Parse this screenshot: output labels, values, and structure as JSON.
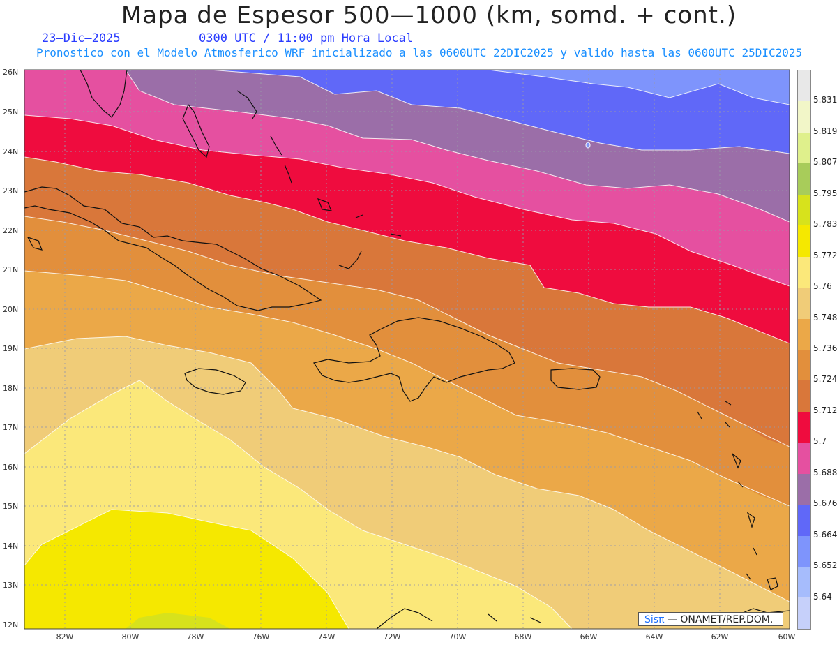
{
  "title": "Mapa de Espesor 500—1000 (km, somd. + cont.)",
  "date_label": "23—Dic—2025",
  "time_label": "0300 UTC / 11:00 pm Hora Local",
  "model_line": "Pronostico con el Modelo Atmosferico WRF inicializado a las 0600UTC_22DIC2025 y valido hasta las  0600UTC_25DIC2025",
  "credit": {
    "brand": "Sisπ",
    "text": "— ONAMET/REP.DOM."
  },
  "lat_labels": [
    "26N",
    "25N",
    "24N",
    "23N",
    "22N",
    "21N",
    "20N",
    "19N",
    "18N",
    "17N",
    "16N",
    "15N",
    "14N",
    "13N",
    "12N"
  ],
  "lon_labels": [
    "82W",
    "80W",
    "78W",
    "76W",
    "74W",
    "72W",
    "70W",
    "68W",
    "66W",
    "64W",
    "62W",
    "60W"
  ],
  "colorbar": {
    "labels": [
      "5.831",
      "5.819",
      "5.807",
      "5.795",
      "5.783",
      "5.772",
      "5.76",
      "5.748",
      "5.736",
      "5.724",
      "5.712",
      "5.7",
      "5.688",
      "5.676",
      "5.664",
      "5.652",
      "5.64"
    ],
    "colors": [
      "#e8e8e8",
      "#f2f6c8",
      "#dff08c",
      "#a8cc5a",
      "#d7e21c",
      "#f5e800",
      "#fbe87a",
      "#f0cc78",
      "#eba848",
      "#e28f3c",
      "#d9773a",
      "#ef0c3e",
      "#e550a0",
      "#9b6ea8",
      "#6068f8",
      "#7e94fc",
      "#a6bcfc",
      "#c6d0fa"
    ]
  },
  "bands": [
    "#e550a0",
    "#9b6ea8",
    "#6068f8",
    "#7e94fc",
    "#ef0c3e",
    "#d9773a",
    "#e28f3c",
    "#eba848",
    "#f0cc78",
    "#fbe87a",
    "#f5e800",
    "#d7e21c"
  ]
}
